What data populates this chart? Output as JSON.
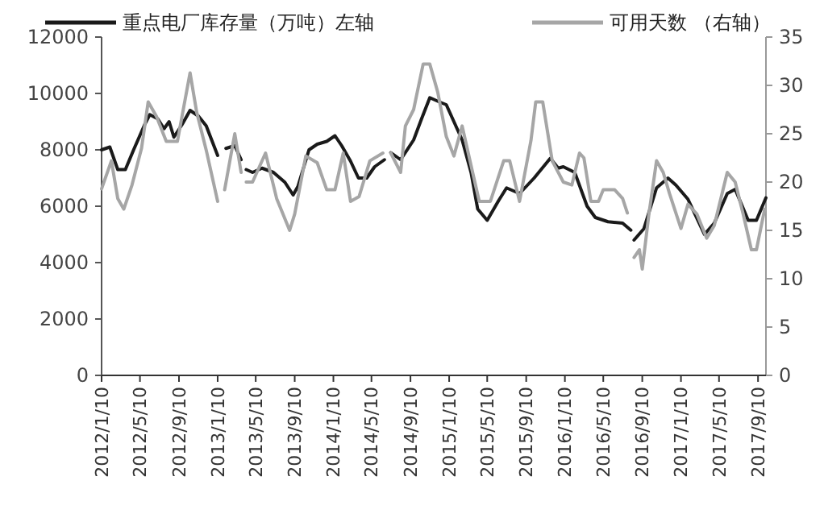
{
  "chart_data": {
    "type": "line",
    "legend": "top",
    "grid": false,
    "line_style": "solid",
    "marker": "none",
    "xlim": [
      "2012-01-10",
      "2017-10-05"
    ],
    "xticks": [
      {
        "value": "2012-01-10",
        "label": "2012/1/10"
      },
      {
        "value": "2012-05-10",
        "label": "2012/5/10"
      },
      {
        "value": "2012-09-10",
        "label": "2012/9/10"
      },
      {
        "value": "2013-01-10",
        "label": "2013/1/10"
      },
      {
        "value": "2013-05-10",
        "label": "2013/5/10"
      },
      {
        "value": "2013-09-10",
        "label": "2013/9/10"
      },
      {
        "value": "2014-01-10",
        "label": "2014/1/10"
      },
      {
        "value": "2014-05-10",
        "label": "2014/5/10"
      },
      {
        "value": "2014-09-10",
        "label": "2014/9/10"
      },
      {
        "value": "2015-01-10",
        "label": "2015/1/10"
      },
      {
        "value": "2015-05-10",
        "label": "2015/5/10"
      },
      {
        "value": "2015-09-10",
        "label": "2015/9/10"
      },
      {
        "value": "2016-01-10",
        "label": "2016/1/10"
      },
      {
        "value": "2016-05-10",
        "label": "2016/5/10"
      },
      {
        "value": "2016-09-10",
        "label": "2016/9/10"
      },
      {
        "value": "2017-01-10",
        "label": "2017/1/10"
      },
      {
        "value": "2017-05-10",
        "label": "2017/5/10"
      },
      {
        "value": "2017-09-10",
        "label": "2017/9/10"
      }
    ],
    "ylim": [
      0,
      12000
    ],
    "yticks": [
      0,
      2000,
      4000,
      6000,
      8000,
      10000,
      12000
    ],
    "y2lim": [
      0,
      35
    ],
    "y2ticks": [
      0,
      5,
      10,
      15,
      20,
      25,
      30,
      35
    ],
    "series": [
      {
        "name": "重点电厂库存量（万吨）左轴",
        "color": "#1a1a1a",
        "axis": "y",
        "x": [
          "2012-01-10",
          "2012-02-05",
          "2012-03-01",
          "2012-03-25",
          "2012-04-20",
          "2012-05-25",
          "2012-06-10",
          "2012-07-05",
          "2012-07-25",
          "2012-08-10",
          "2012-08-25",
          "2012-09-20",
          "2012-10-15",
          "2012-11-10",
          "2012-12-05",
          "2013-01-10",
          "2013-01-20",
          "2013-02-05",
          "2013-03-05",
          "2013-03-25",
          "2013-03-30",
          "2013-04-10",
          "2013-04-30",
          "2013-05-30",
          "2013-07-05",
          "2013-08-10",
          "2013-09-05",
          "2013-09-20",
          "2013-10-25",
          "2013-11-20",
          "2013-12-20",
          "2014-01-15",
          "2014-02-05",
          "2014-03-05",
          "2014-03-30",
          "2014-04-25",
          "2014-05-20",
          "2014-06-20",
          "2014-06-25",
          "2014-07-10",
          "2014-08-10",
          "2014-09-20",
          "2014-10-15",
          "2014-11-10",
          "2014-12-10",
          "2015-01-01",
          "2015-01-25",
          "2015-02-20",
          "2015-03-20",
          "2015-04-10",
          "2015-05-10",
          "2015-06-15",
          "2015-07-10",
          "2015-08-20",
          "2015-10-05",
          "2015-11-25",
          "2015-12-20",
          "2016-01-05",
          "2016-02-10",
          "2016-03-20",
          "2016-04-15",
          "2016-05-25",
          "2016-07-10",
          "2016-08-05",
          "2016-08-10",
          "2016-08-15",
          "2016-09-15",
          "2016-10-25",
          "2016-11-30",
          "2016-12-25",
          "2017-02-01",
          "2017-03-25",
          "2017-04-25",
          "2017-06-05",
          "2017-06-30",
          "2017-08-10",
          "2017-09-05",
          "2017-10-05"
        ],
        "values": [
          8000,
          8100,
          7300,
          7300,
          8000,
          8900,
          9250,
          9100,
          8750,
          9000,
          8450,
          8900,
          9400,
          9200,
          8850,
          7800,
          null,
          8050,
          8150,
          7650,
          null,
          7300,
          7200,
          7350,
          7200,
          6850,
          6400,
          6700,
          8000,
          8200,
          8300,
          8500,
          8150,
          7600,
          7000,
          7000,
          7400,
          7650,
          null,
          7900,
          7650,
          8350,
          9100,
          9850,
          9700,
          9600,
          9000,
          8350,
          7200,
          5900,
          5500,
          6200,
          6650,
          6450,
          7000,
          7700,
          7350,
          7400,
          7200,
          6000,
          5600,
          5450,
          5400,
          5150,
          null,
          4800,
          5200,
          6650,
          7000,
          6750,
          6250,
          5000,
          5400,
          6450,
          6600,
          5500,
          5500,
          6300
        ]
      },
      {
        "name": "可用天数 （右轴）",
        "color": "#a6a6a6",
        "axis": "y2",
        "x": [
          "2012-01-10",
          "2012-02-10",
          "2012-03-01",
          "2012-03-20",
          "2012-04-15",
          "2012-05-15",
          "2012-06-05",
          "2012-07-01",
          "2012-08-01",
          "2012-09-05",
          "2012-10-15",
          "2012-11-05",
          "2012-12-05",
          "2013-01-10",
          "2013-01-20",
          "2013-02-01",
          "2013-03-05",
          "2013-03-25",
          "2013-03-30",
          "2013-04-10",
          "2013-04-30",
          "2013-06-10",
          "2013-07-15",
          "2013-08-25",
          "2013-09-10",
          "2013-10-15",
          "2013-11-20",
          "2013-12-20",
          "2014-01-15",
          "2014-02-10",
          "2014-03-05",
          "2014-04-01",
          "2014-05-05",
          "2014-06-15",
          "2014-06-25",
          "2014-07-10",
          "2014-08-10",
          "2014-08-25",
          "2014-09-20",
          "2014-10-20",
          "2014-11-10",
          "2014-12-05",
          "2015-01-01",
          "2015-01-25",
          "2015-02-20",
          "2015-03-25",
          "2015-04-15",
          "2015-05-20",
          "2015-07-01",
          "2015-07-20",
          "2015-08-20",
          "2015-09-25",
          "2015-10-10",
          "2015-11-01",
          "2015-12-01",
          "2016-01-05",
          "2016-02-01",
          "2016-02-25",
          "2016-03-10",
          "2016-04-01",
          "2016-04-25",
          "2016-05-10",
          "2016-06-15",
          "2016-07-10",
          "2016-07-25",
          "2016-08-10",
          "2016-08-15",
          "2016-09-01",
          "2016-09-10",
          "2016-10-01",
          "2016-10-25",
          "2016-11-15",
          "2016-12-05",
          "2017-01-10",
          "2017-02-01",
          "2017-03-01",
          "2017-04-01",
          "2017-04-25",
          "2017-06-05",
          "2017-06-30",
          "2017-07-25",
          "2017-08-20",
          "2017-09-05",
          "2017-10-01"
        ],
        "values": [
          19.3,
          22.2,
          18.3,
          17.2,
          19.7,
          23.5,
          28.3,
          26.8,
          24.2,
          24.2,
          31.3,
          27.2,
          23.3,
          18,
          null,
          19.2,
          25,
          21,
          null,
          20,
          20,
          23,
          18.3,
          15,
          16.7,
          22.7,
          22,
          19.2,
          19.2,
          23,
          18,
          18.5,
          22.2,
          23,
          null,
          23,
          21,
          25.8,
          27.5,
          32.2,
          32.2,
          29.3,
          24.7,
          22.7,
          25.8,
          21,
          18,
          18,
          22.2,
          22.2,
          18,
          24.3,
          28.3,
          28.3,
          22.2,
          20,
          19.7,
          23,
          22.5,
          18,
          18,
          19.2,
          19.2,
          18.3,
          16.8,
          null,
          12.2,
          13,
          11,
          16.7,
          22.2,
          21,
          18.8,
          15.2,
          17.7,
          16.7,
          14.2,
          15.5,
          21,
          20,
          16.7,
          13,
          13,
          17.2
        ]
      }
    ]
  }
}
